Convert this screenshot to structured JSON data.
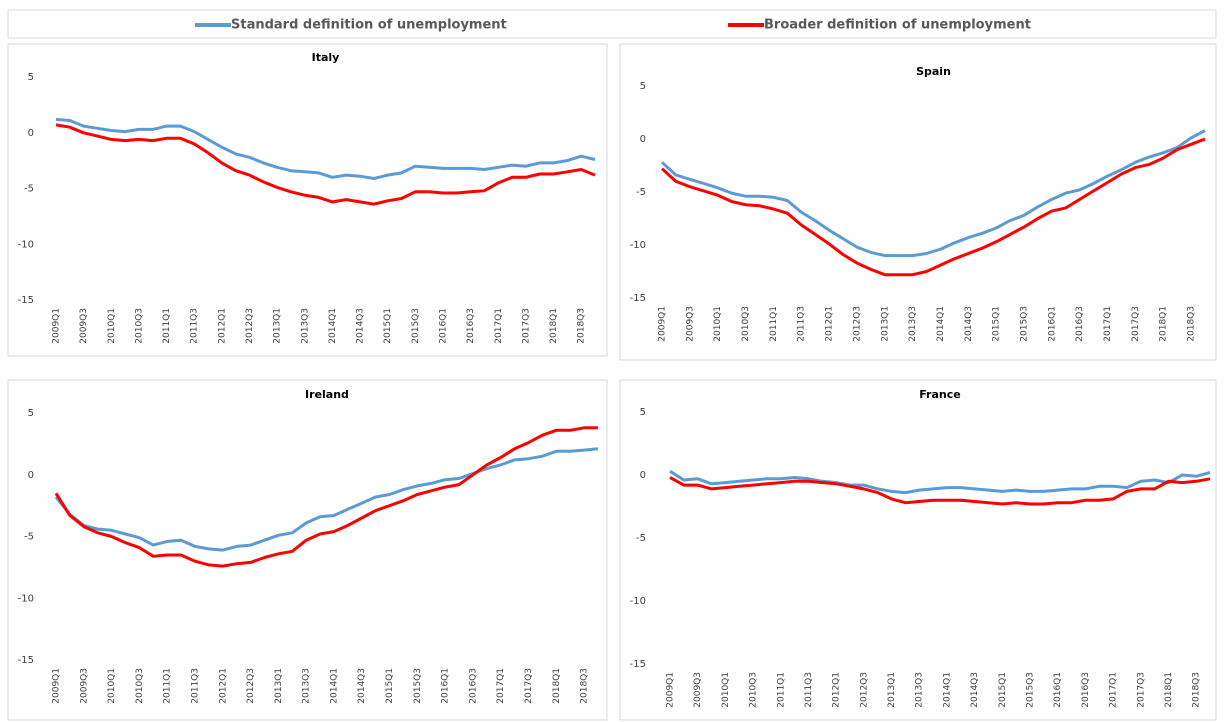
{
  "legend": {
    "items": [
      {
        "name": "Standard definition of unemployment",
        "color": "#5b9bd5"
      },
      {
        "name": "Broader definition of unemployment",
        "color": "#ff0000"
      }
    ]
  },
  "chart_data": [
    {
      "type": "line",
      "title": "Italy",
      "categories": [
        "2009Q1",
        null,
        "2009Q3",
        null,
        "2010Q1",
        null,
        "2010Q3",
        null,
        "2011Q1",
        null,
        "2011Q3",
        null,
        "2012Q1",
        null,
        "2012Q3",
        null,
        "2013Q1",
        null,
        "2013Q3",
        null,
        "2014Q1",
        null,
        "2014Q3",
        null,
        "2015Q1",
        null,
        "2015Q3",
        null,
        "2016Q1",
        null,
        "2016Q3",
        null,
        "2017Q1",
        null,
        "2017Q3",
        null,
        "2018Q1",
        null,
        "2018Q3",
        null
      ],
      "series": [
        {
          "values": [
            1.2,
            1.1,
            0.6,
            0.4,
            0.2,
            0.1,
            0.3,
            0.3,
            0.6,
            0.6,
            0.1,
            -0.6,
            -1.3,
            -1.9,
            -2.2,
            -2.7,
            -3.1,
            -3.4,
            -3.5,
            -3.6,
            -4.0,
            -3.8,
            -3.9,
            -4.1,
            -3.8,
            -3.6,
            -3.0,
            -3.1,
            -3.2,
            -3.2,
            -3.2,
            -3.3,
            -3.1,
            -2.9,
            -3.0,
            -2.7,
            -2.7,
            -2.5,
            -2.1,
            -2.4
          ]
        },
        {
          "values": [
            0.7,
            0.5,
            0.0,
            -0.3,
            -0.6,
            -0.7,
            -0.6,
            -0.7,
            -0.5,
            -0.5,
            -1.0,
            -1.8,
            -2.7,
            -3.4,
            -3.8,
            -4.4,
            -4.9,
            -5.3,
            -5.6,
            -5.8,
            -6.2,
            -6.0,
            -6.2,
            -6.4,
            -6.1,
            -5.9,
            -5.3,
            -5.3,
            -5.4,
            -5.4,
            -5.3,
            -5.2,
            -4.5,
            -4.0,
            -4.0,
            -3.7,
            -3.7,
            -3.5,
            -3.3,
            -3.8
          ]
        }
      ],
      "ylim": [
        -15,
        5
      ],
      "yticks": [
        -15,
        -10,
        -5,
        0,
        5
      ]
    },
    {
      "type": "line",
      "title": "Spain",
      "categories": [
        "2009Q1",
        null,
        "2009Q3",
        null,
        "2010Q1",
        null,
        "2010Q3",
        null,
        "2011Q1",
        null,
        "2011Q3",
        null,
        "2012Q1",
        null,
        "2012Q3",
        null,
        "2013Q1",
        null,
        "2013Q3",
        null,
        "2014Q1",
        null,
        "2014Q3",
        null,
        "2015Q1",
        null,
        "2015Q3",
        null,
        "2016Q1",
        null,
        "2016Q3",
        null,
        "2017Q1",
        null,
        "2017Q3",
        null,
        "2018Q1",
        null,
        "2018Q3",
        null
      ],
      "series": [
        {
          "values": [
            -2.2,
            -3.4,
            -3.8,
            -4.2,
            -4.6,
            -5.1,
            -5.4,
            -5.4,
            -5.5,
            -5.8,
            -6.9,
            -7.7,
            -8.6,
            -9.4,
            -10.2,
            -10.7,
            -11.0,
            -11.0,
            -11.0,
            -10.8,
            -10.4,
            -9.8,
            -9.3,
            -8.9,
            -8.4,
            -7.7,
            -7.2,
            -6.4,
            -5.7,
            -5.1,
            -4.8,
            -4.2,
            -3.5,
            -2.9,
            -2.2,
            -1.7,
            -1.3,
            -0.8,
            0.1,
            0.8
          ]
        },
        {
          "values": [
            -2.8,
            -4.0,
            -4.5,
            -4.9,
            -5.3,
            -5.9,
            -6.2,
            -6.3,
            -6.6,
            -7.0,
            -8.1,
            -9.0,
            -9.9,
            -10.9,
            -11.7,
            -12.3,
            -12.8,
            -12.8,
            -12.8,
            -12.5,
            -11.9,
            -11.3,
            -10.8,
            -10.3,
            -9.7,
            -9.0,
            -8.3,
            -7.5,
            -6.8,
            -6.5,
            -5.7,
            -4.9,
            -4.1,
            -3.3,
            -2.7,
            -2.4,
            -1.8,
            -1.0,
            -0.5,
            0.0
          ]
        }
      ],
      "ylim": [
        -15,
        5
      ],
      "yticks": [
        -15,
        -10,
        -5,
        0,
        5
      ]
    },
    {
      "type": "line",
      "title": "Ireland",
      "categories": [
        "2009Q1",
        null,
        "2009Q3",
        null,
        "2010Q1",
        null,
        "2010Q3",
        null,
        "2011Q1",
        null,
        "2011Q3",
        null,
        "2012Q1",
        null,
        "2012Q3",
        null,
        "2013Q1",
        null,
        "2013Q3",
        null,
        "2014Q1",
        null,
        "2014Q3",
        null,
        "2015Q1",
        null,
        "2015Q3",
        null,
        "2016Q1",
        null,
        "2016Q3",
        null,
        "2017Q1",
        null,
        "2017Q3",
        null,
        "2018Q1",
        null,
        "2018Q3",
        null
      ],
      "series": [
        {
          "values": [
            -1.8,
            -3.2,
            -4.1,
            -4.4,
            -4.5,
            -4.8,
            -5.1,
            -5.7,
            -5.4,
            -5.3,
            -5.8,
            -6.0,
            -6.1,
            -5.8,
            -5.7,
            -5.3,
            -4.9,
            -4.7,
            -3.9,
            -3.4,
            -3.3,
            -2.8,
            -2.3,
            -1.8,
            -1.6,
            -1.2,
            -0.9,
            -0.7,
            -0.4,
            -0.3,
            0.1,
            0.5,
            0.8,
            1.2,
            1.3,
            1.5,
            1.9,
            1.9,
            2.0,
            2.1
          ]
        },
        {
          "values": [
            -1.5,
            -3.3,
            -4.2,
            -4.7,
            -5.0,
            -5.5,
            -5.9,
            -6.6,
            -6.5,
            -6.5,
            -7.0,
            -7.3,
            -7.4,
            -7.2,
            -7.1,
            -6.7,
            -6.4,
            -6.2,
            -5.3,
            -4.8,
            -4.6,
            -4.1,
            -3.5,
            -2.9,
            -2.5,
            -2.1,
            -1.6,
            -1.3,
            -1.0,
            -0.8,
            0.0,
            0.8,
            1.4,
            2.1,
            2.6,
            3.2,
            3.6,
            3.6,
            3.8,
            3.8
          ]
        }
      ],
      "ylim": [
        -15,
        5
      ],
      "yticks": [
        -15,
        -10,
        -5,
        0,
        5
      ]
    },
    {
      "type": "line",
      "title": "France",
      "categories": [
        "2009Q1",
        null,
        "2009Q3",
        null,
        "2010Q1",
        null,
        "2010Q3",
        null,
        "2011Q1",
        null,
        "2011Q3",
        null,
        "2012Q1",
        null,
        "2012Q3",
        null,
        "2013Q1",
        null,
        "2013Q3",
        null,
        "2014Q1",
        null,
        "2014Q3",
        null,
        "2015Q1",
        null,
        "2015Q3",
        null,
        "2016Q1",
        null,
        "2016Q3",
        null,
        "2017Q1",
        null,
        "2017Q3",
        null,
        "2018Q1",
        null,
        "2018Q3",
        null
      ],
      "series": [
        {
          "values": [
            0.3,
            -0.4,
            -0.3,
            -0.7,
            -0.6,
            -0.5,
            -0.4,
            -0.3,
            -0.3,
            -0.2,
            -0.3,
            -0.5,
            -0.6,
            -0.8,
            -0.8,
            -1.1,
            -1.3,
            -1.4,
            -1.2,
            -1.1,
            -1.0,
            -1.0,
            -1.1,
            -1.2,
            -1.3,
            -1.2,
            -1.3,
            -1.3,
            -1.2,
            -1.1,
            -1.1,
            -0.9,
            -0.9,
            -1.0,
            -0.5,
            -0.4,
            -0.6,
            0.0,
            -0.1,
            0.2
          ]
        },
        {
          "values": [
            -0.2,
            -0.8,
            -0.8,
            -1.1,
            -1.0,
            -0.9,
            -0.8,
            -0.7,
            -0.6,
            -0.5,
            -0.5,
            -0.6,
            -0.7,
            -0.9,
            -1.1,
            -1.4,
            -1.9,
            -2.2,
            -2.1,
            -2.0,
            -2.0,
            -2.0,
            -2.1,
            -2.2,
            -2.3,
            -2.2,
            -2.3,
            -2.3,
            -2.2,
            -2.2,
            -2.0,
            -2.0,
            -1.9,
            -1.3,
            -1.1,
            -1.1,
            -0.5,
            -0.6,
            -0.5,
            -0.3
          ]
        }
      ],
      "ylim": [
        -15,
        5
      ],
      "yticks": [
        -15,
        -10,
        -5,
        0,
        5
      ]
    }
  ]
}
